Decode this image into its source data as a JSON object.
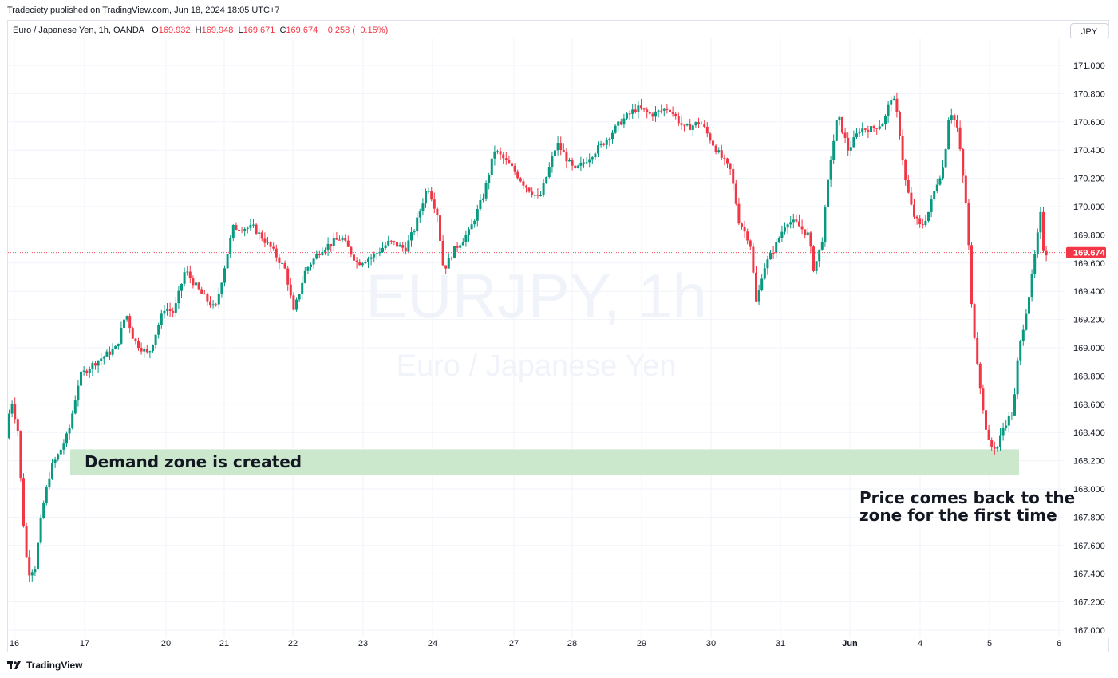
{
  "header": {
    "publish_info": "Tradeciety published on TradingView.com, Jun 18, 2024 18:05 UTC+7"
  },
  "legend": {
    "symbol": "Euro / Japanese Yen, 1h, OANDA",
    "o_label": "O",
    "o_value": "169.932",
    "h_label": "H",
    "h_value": "169.948",
    "l_label": "L",
    "l_value": "169.671",
    "c_label": "C",
    "c_value": "169.674",
    "change": "−0.258 (−0.15%)"
  },
  "currency_button": "JPY",
  "footer": {
    "brand": "TradingView"
  },
  "colors": {
    "up": "#089981",
    "down": "#f23645",
    "zone": "#c8e6c9",
    "grid": "#f0f3fa"
  },
  "chart_data": {
    "type": "candlestick",
    "symbol": "EURJPY",
    "interval": "1h",
    "watermark_symbol": "EURJPY, 1h",
    "watermark_name": "Euro / Japanese Yen",
    "y_ticks": [
      "171.000",
      "170.800",
      "170.600",
      "170.400",
      "170.200",
      "170.000",
      "169.800",
      "169.600",
      "169.400",
      "169.200",
      "169.000",
      "168.800",
      "168.600",
      "168.400",
      "168.200",
      "168.000",
      "167.800",
      "167.600",
      "167.400",
      "167.200",
      "167.000"
    ],
    "ylim": [
      166.98,
      171.25
    ],
    "x_ticks": [
      "16",
      "17",
      "20",
      "21",
      "22",
      "23",
      "24",
      "27",
      "28",
      "29",
      "30",
      "31",
      "Jun",
      "4",
      "5",
      "6"
    ],
    "last_price": "169.674",
    "last_price_value": 169.674,
    "grid": true,
    "demand_zone": {
      "low": 168.1,
      "high": 168.28,
      "label": "Demand zone is created"
    },
    "annotation": {
      "line1": "Price comes back to the",
      "line2": "zone for the first time"
    },
    "path_points": [
      [
        0,
        168.36
      ],
      [
        6,
        168.65
      ],
      [
        15,
        168.4
      ],
      [
        20,
        167.85
      ],
      [
        27,
        167.4
      ],
      [
        36,
        167.45
      ],
      [
        45,
        167.85
      ],
      [
        56,
        168.15
      ],
      [
        66,
        168.25
      ],
      [
        78,
        168.4
      ],
      [
        92,
        168.8
      ],
      [
        112,
        168.9
      ],
      [
        138,
        169.0
      ],
      [
        150,
        169.25
      ],
      [
        160,
        169.05
      ],
      [
        178,
        168.95
      ],
      [
        198,
        169.28
      ],
      [
        210,
        169.25
      ],
      [
        224,
        169.55
      ],
      [
        242,
        169.4
      ],
      [
        262,
        169.27
      ],
      [
        284,
        169.85
      ],
      [
        310,
        169.85
      ],
      [
        330,
        169.72
      ],
      [
        350,
        169.55
      ],
      [
        360,
        169.25
      ],
      [
        375,
        169.55
      ],
      [
        395,
        169.7
      ],
      [
        420,
        169.78
      ],
      [
        440,
        169.6
      ],
      [
        460,
        169.65
      ],
      [
        480,
        169.75
      ],
      [
        500,
        169.7
      ],
      [
        512,
        169.85
      ],
      [
        528,
        170.15
      ],
      [
        540,
        169.95
      ],
      [
        548,
        169.55
      ],
      [
        562,
        169.7
      ],
      [
        580,
        169.82
      ],
      [
        598,
        170.08
      ],
      [
        612,
        170.4
      ],
      [
        630,
        170.3
      ],
      [
        650,
        170.15
      ],
      [
        668,
        170.05
      ],
      [
        690,
        170.45
      ],
      [
        712,
        170.25
      ],
      [
        730,
        170.35
      ],
      [
        748,
        170.45
      ],
      [
        770,
        170.6
      ],
      [
        790,
        170.7
      ],
      [
        808,
        170.65
      ],
      [
        830,
        170.7
      ],
      [
        850,
        170.55
      ],
      [
        870,
        170.6
      ],
      [
        890,
        170.4
      ],
      [
        908,
        170.25
      ],
      [
        918,
        169.9
      ],
      [
        932,
        169.75
      ],
      [
        940,
        169.3
      ],
      [
        948,
        169.55
      ],
      [
        962,
        169.7
      ],
      [
        978,
        169.9
      ],
      [
        990,
        169.88
      ],
      [
        1005,
        169.8
      ],
      [
        1012,
        169.55
      ],
      [
        1022,
        169.75
      ],
      [
        1032,
        170.3
      ],
      [
        1042,
        170.65
      ],
      [
        1055,
        170.4
      ],
      [
        1070,
        170.55
      ],
      [
        1085,
        170.55
      ],
      [
        1100,
        170.6
      ],
      [
        1110,
        170.8
      ],
      [
        1118,
        170.6
      ],
      [
        1126,
        170.2
      ],
      [
        1136,
        169.95
      ],
      [
        1146,
        169.85
      ],
      [
        1155,
        169.95
      ],
      [
        1165,
        170.15
      ],
      [
        1175,
        170.3
      ],
      [
        1182,
        170.7
      ],
      [
        1192,
        170.55
      ],
      [
        1198,
        170.25
      ],
      [
        1204,
        169.95
      ],
      [
        1210,
        169.25
      ],
      [
        1216,
        168.95
      ],
      [
        1224,
        168.55
      ],
      [
        1232,
        168.3
      ],
      [
        1242,
        168.3
      ],
      [
        1250,
        168.45
      ],
      [
        1262,
        168.55
      ],
      [
        1268,
        168.95
      ],
      [
        1276,
        169.2
      ],
      [
        1284,
        169.45
      ],
      [
        1290,
        169.7
      ],
      [
        1296,
        169.94
      ],
      [
        1300,
        169.674
      ]
    ]
  }
}
